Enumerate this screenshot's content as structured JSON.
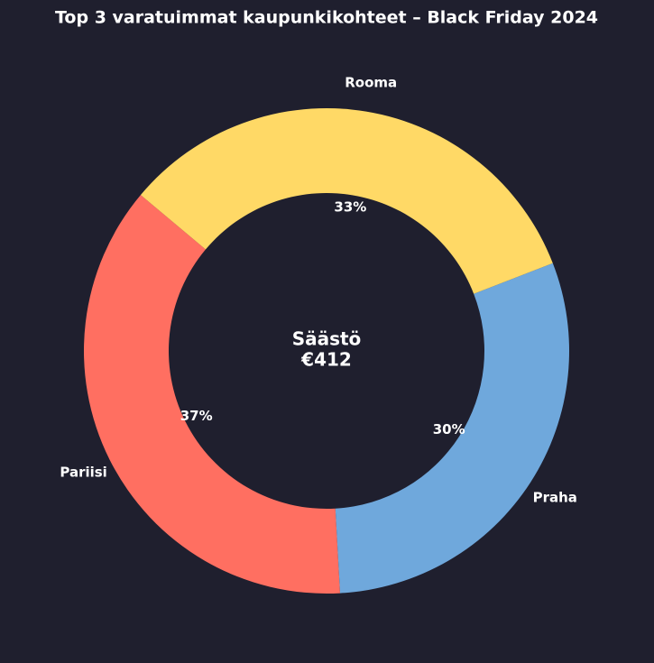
{
  "chart_data": {
    "type": "donut",
    "title": "Top 3 varatuimmat kaupunkikohteet – Black Friday 2024",
    "categories": [
      "Pariisi",
      "Praha",
      "Rooma"
    ],
    "values": [
      37,
      30,
      33
    ],
    "value_labels": [
      "37%",
      "30%",
      "33%"
    ],
    "colors": [
      "#ff6f61",
      "#6fa8dc",
      "#ffd966"
    ],
    "center_text": [
      "Säästö",
      "€412"
    ]
  }
}
